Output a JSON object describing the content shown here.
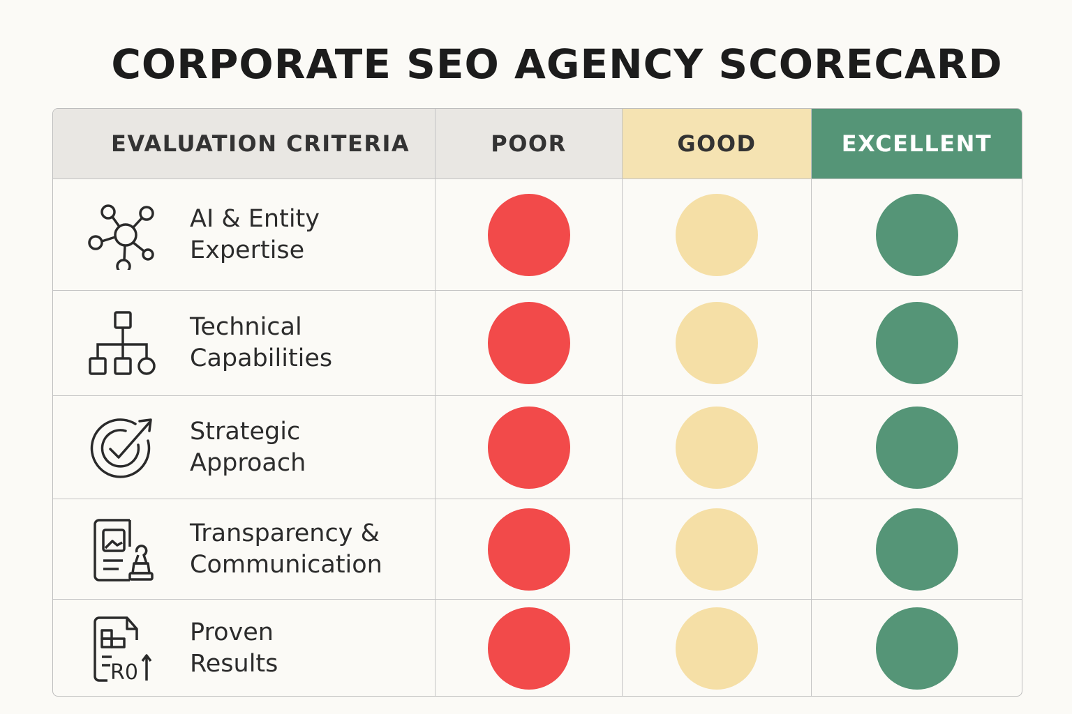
{
  "title": "CORPORATE SEO AGENCY SCORECARD",
  "header": {
    "criteria": "EVALUATION CRITERIA",
    "poor": "POOR",
    "good": "GOOD",
    "excellent": "EXCELLENT"
  },
  "colors": {
    "poor": "#f24a4a",
    "good": "#f5dfa6",
    "excellent": "#559577",
    "header_gray": "#e9e7e3",
    "background": "#fbfaf6"
  },
  "rows": [
    {
      "icon": "network-nodes-icon",
      "label_line1": "AI & Entity",
      "label_line2": "Expertise"
    },
    {
      "icon": "hierarchy-chart-icon",
      "label_line1": "Technical",
      "label_line2": "Capabilities"
    },
    {
      "icon": "target-check-icon",
      "label_line1": "Strategic",
      "label_line2": "Approach"
    },
    {
      "icon": "document-chess-icon",
      "label_line1": "Transparency &",
      "label_line2": "Communication"
    },
    {
      "icon": "roi-report-icon",
      "label_line1": "Proven",
      "label_line2": "Results",
      "icon_text": "R0"
    }
  ]
}
